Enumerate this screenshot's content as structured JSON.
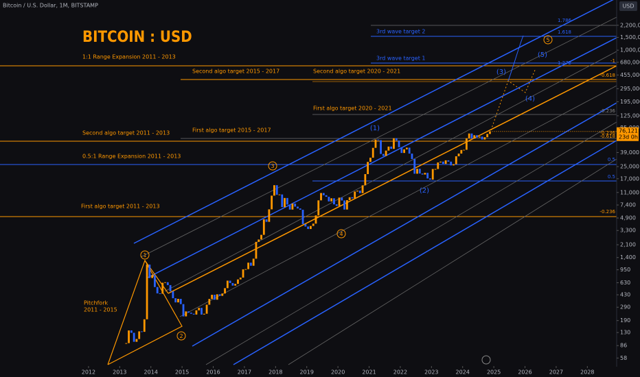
{
  "header": {
    "symbol": "Bitcoin / U.S. Dollar, 1M, BITSTAMP",
    "currency": "USD"
  },
  "chart_data": {
    "type": "candlestick",
    "title": "BITCOIN : USD",
    "x": [
      "2013-03",
      "2013-04",
      "2013-05",
      "2013-06",
      "2013-07",
      "2013-08",
      "2013-09",
      "2013-10",
      "2013-11",
      "2013-12",
      "2014-01",
      "2014-02",
      "2014-03",
      "2014-04",
      "2014-05",
      "2014-06",
      "2014-07",
      "2014-08",
      "2014-09",
      "2014-10",
      "2014-11",
      "2014-12",
      "2015-01",
      "2015-02",
      "2015-03",
      "2015-04",
      "2015-05",
      "2015-06",
      "2015-07",
      "2015-08",
      "2015-09",
      "2015-10",
      "2015-11",
      "2015-12",
      "2016-01",
      "2016-02",
      "2016-03",
      "2016-04",
      "2016-05",
      "2016-06",
      "2016-07",
      "2016-08",
      "2016-09",
      "2016-10",
      "2016-11",
      "2016-12",
      "2017-01",
      "2017-02",
      "2017-03",
      "2017-04",
      "2017-05",
      "2017-06",
      "2017-07",
      "2017-08",
      "2017-09",
      "2017-10",
      "2017-11",
      "2017-12",
      "2018-01",
      "2018-02",
      "2018-03",
      "2018-04",
      "2018-05",
      "2018-06",
      "2018-07",
      "2018-08",
      "2018-09",
      "2018-10",
      "2018-11",
      "2018-12",
      "2019-01",
      "2019-02",
      "2019-03",
      "2019-04",
      "2019-05",
      "2019-06",
      "2019-07",
      "2019-08",
      "2019-09",
      "2019-10",
      "2019-11",
      "2019-12",
      "2020-01",
      "2020-02",
      "2020-03",
      "2020-04",
      "2020-05",
      "2020-06",
      "2020-07",
      "2020-08",
      "2020-09",
      "2020-10",
      "2020-11",
      "2020-12",
      "2021-01",
      "2021-02",
      "2021-03",
      "2021-04",
      "2021-05",
      "2021-06",
      "2021-07",
      "2021-08",
      "2021-09",
      "2021-10",
      "2021-11",
      "2021-12",
      "2022-01",
      "2022-02",
      "2022-03",
      "2022-04",
      "2022-05",
      "2022-06",
      "2022-07",
      "2022-08",
      "2022-09",
      "2022-10",
      "2022-11",
      "2022-12",
      "2023-01",
      "2023-02",
      "2023-03",
      "2023-04",
      "2023-05",
      "2023-06",
      "2023-07",
      "2023-08",
      "2023-09",
      "2023-10",
      "2023-11",
      "2023-12",
      "2024-01",
      "2024-02",
      "2024-03",
      "2024-04",
      "2024-05",
      "2024-06",
      "2024-07",
      "2024-08",
      "2024-09",
      "2024-10",
      "2024-11"
    ],
    "close": [
      93,
      139,
      129,
      97,
      106,
      135,
      133,
      198,
      1120,
      732,
      800,
      550,
      450,
      445,
      630,
      640,
      585,
      480,
      386,
      338,
      378,
      320,
      217,
      254,
      244,
      236,
      230,
      263,
      284,
      230,
      236,
      314,
      377,
      430,
      368,
      437,
      416,
      448,
      531,
      673,
      624,
      575,
      608,
      700,
      742,
      963,
      970,
      1190,
      1080,
      1350,
      2300,
      2480,
      2875,
      4700,
      4340,
      6450,
      9950,
      13860,
      10220,
      10330,
      6920,
      9240,
      7500,
      6400,
      7730,
      7030,
      6630,
      6370,
      4040,
      3740,
      3460,
      3810,
      4100,
      5320,
      8570,
      10820,
      10080,
      9600,
      8290,
      9150,
      7550,
      7190,
      9350,
      8540,
      6410,
      8630,
      9450,
      9140,
      11350,
      11660,
      10780,
      13800,
      19700,
      28990,
      33110,
      45240,
      58800,
      57720,
      37300,
      35040,
      41460,
      47130,
      43820,
      61300,
      57000,
      46210,
      38480,
      43190,
      45540,
      37710,
      31790,
      19940,
      23300,
      20050,
      19430,
      20490,
      17170,
      16540,
      23130,
      23150,
      28480,
      29250,
      27220,
      30480,
      29230,
      25940,
      26970,
      34650,
      37720,
      42280,
      42580,
      61180,
      71330,
      60640,
      67490,
      62680,
      64620,
      58970,
      63330,
      70290,
      76121
    ],
    "colors": {
      "up": "#ff9800",
      "down": "#2962ff"
    },
    "log_scale": true,
    "xlim": [
      2009.16,
      2028.94
    ],
    "xticks": [
      2012,
      2013,
      2014,
      2015,
      2016,
      2017,
      2018,
      2019,
      2020,
      2021,
      2022,
      2023,
      2024,
      2025,
      2026,
      2027,
      2028
    ],
    "ylim": [
      47,
      4900000
    ],
    "yticks": [
      58,
      86,
      130,
      190,
      290,
      430,
      630,
      950,
      {
        "value": 1400,
        "label": "1,400"
      },
      {
        "value": 2100,
        "label": "2,100"
      },
      {
        "value": 3300,
        "label": "3,300"
      },
      {
        "value": 4900,
        "label": "4,900"
      },
      {
        "value": 7400,
        "label": "7,400"
      },
      {
        "value": 11000,
        "label": "11,000"
      },
      {
        "value": 17000,
        "label": "17,000"
      },
      {
        "value": 25000,
        "label": "25,000"
      },
      {
        "value": 39000,
        "label": "39,000"
      },
      {
        "value": 85000,
        "label": "85,000"
      },
      {
        "value": 125000,
        "label": "125,000"
      },
      {
        "value": 195000,
        "label": "195,000"
      },
      {
        "value": 295000,
        "label": "295,000"
      },
      {
        "value": 455000,
        "label": "455,000"
      },
      {
        "value": 680000,
        "label": "680,000"
      },
      {
        "value": 1000000,
        "label": "1,000,000"
      },
      {
        "value": 1500000,
        "label": "1,500,000"
      },
      {
        "value": 2200000,
        "label": "2,200,000"
      }
    ],
    "last_price": {
      "value": 76121,
      "label": "76,121"
    },
    "countdown": "23d 0h",
    "annotations": [
      "1:1 Range Expansion 2011 - 2013",
      "Second algo target 2015 - 2017",
      "Second algo target 2020 - 2021",
      "First algo target 2020 - 2021",
      "Second algo target 2011 - 2013",
      "First algo target 2015 - 2017",
      "0.5:1 Range Expansion 2011 - 2013",
      "First algo target 2011 - 2013",
      "3rd wave target 2",
      "3rd wave target 1",
      "Pitchfork",
      "2011 - 2015"
    ],
    "fib_labels": [
      "1.786",
      "1.618",
      "1.272",
      "-1",
      "-0.618",
      "-0.236",
      "-0.236",
      "-0.618",
      "0.5",
      "0.5",
      "-0.236"
    ],
    "wave_labels": [
      "1",
      "2",
      "3",
      "4",
      "5"
    ],
    "subwave_labels": [
      "(1)",
      "(2)",
      "(3)",
      "(4)",
      "(5)"
    ]
  }
}
